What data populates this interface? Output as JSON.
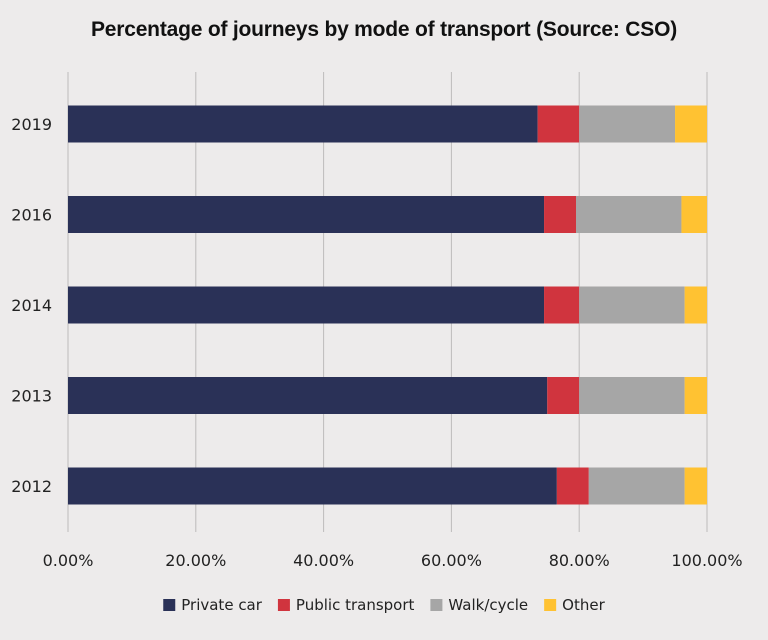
{
  "chart_data": {
    "type": "bar",
    "orientation": "horizontal",
    "stacked": true,
    "title": "Percentage of journeys by mode of transport (Source: CSO)",
    "xlabel": "",
    "ylabel": "",
    "categories": [
      "2019",
      "2016",
      "2014",
      "2013",
      "2012"
    ],
    "series": [
      {
        "name": "Private car",
        "color": "#2a3157",
        "values": [
          73.5,
          74.5,
          74.5,
          75.0,
          76.5
        ]
      },
      {
        "name": "Public transport",
        "color": "#d0343e",
        "values": [
          6.5,
          5.0,
          5.5,
          5.0,
          5.0
        ]
      },
      {
        "name": "Walk/cycle",
        "color": "#a6a6a6",
        "values": [
          15.0,
          16.5,
          16.5,
          16.5,
          15.0
        ]
      },
      {
        "name": "Other",
        "color": "#ffc232",
        "values": [
          5.0,
          4.0,
          3.5,
          3.5,
          3.5
        ]
      }
    ],
    "xlim": [
      0,
      100
    ],
    "xticks": [
      0,
      20,
      40,
      60,
      80,
      100
    ],
    "xtick_labels": [
      "0.00%",
      "20.00%",
      "40.00%",
      "60.00%",
      "80.00%",
      "100.00%"
    ],
    "grid": true,
    "legend_position": "bottom"
  }
}
